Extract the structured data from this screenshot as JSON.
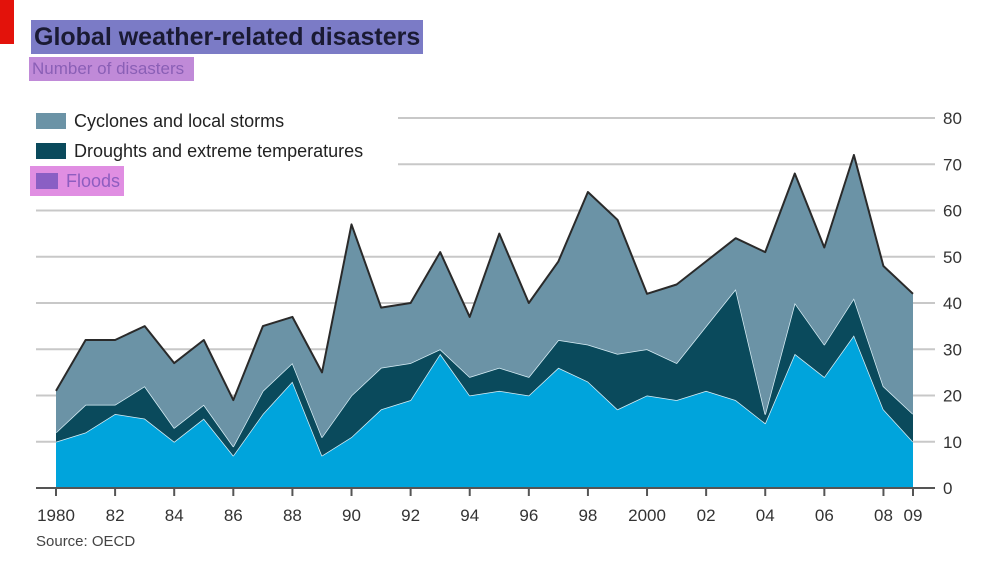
{
  "header": {
    "title": "Global weather-related disasters",
    "subtitle": "Number of disasters"
  },
  "source": "Source: OECD",
  "colors": {
    "accent": "#e3120b",
    "cyclones": "#6b93a6",
    "droughts": "#0a4a5c",
    "floods": "#00a4dc"
  },
  "chart_data": {
    "type": "area",
    "stacked": true,
    "title": "Global weather-related disasters",
    "subtitle": "Number of disasters",
    "x": [
      1980,
      1981,
      1982,
      1983,
      1984,
      1985,
      1986,
      1987,
      1988,
      1989,
      1990,
      1991,
      1992,
      1993,
      1994,
      1995,
      1996,
      1997,
      1998,
      1999,
      2000,
      2001,
      2002,
      2003,
      2004,
      2005,
      2006,
      2007,
      2008,
      2009
    ],
    "x_tick_values": [
      1980,
      1982,
      1984,
      1986,
      1988,
      1990,
      1992,
      1994,
      1996,
      1998,
      2000,
      2002,
      2004,
      2006,
      2008,
      2009
    ],
    "x_tick_labels": [
      "1980",
      "82",
      "84",
      "86",
      "88",
      "90",
      "92",
      "94",
      "96",
      "98",
      "2000",
      "02",
      "04",
      "06",
      "08",
      "09"
    ],
    "y_ticks": [
      0,
      10,
      20,
      30,
      40,
      50,
      60,
      70,
      80
    ],
    "ylim": [
      0,
      80
    ],
    "y_axis_side": "right",
    "grid": true,
    "legend_position": "top-left",
    "series": [
      {
        "name": "Floods",
        "color": "#00a4dc",
        "values": [
          10,
          12,
          16,
          15,
          10,
          15,
          7,
          16,
          23,
          7,
          11,
          17,
          19,
          29,
          20,
          21,
          20,
          26,
          23,
          17,
          20,
          19,
          21,
          19,
          14,
          29,
          24,
          33,
          17,
          10
        ]
      },
      {
        "name": "Droughts and extreme temperatures",
        "color": "#0a4a5c",
        "values": [
          2,
          6,
          2,
          7,
          3,
          3,
          2,
          5,
          4,
          4,
          9,
          9,
          8,
          1,
          4,
          5,
          4,
          6,
          8,
          12,
          10,
          8,
          14,
          24,
          2,
          11,
          7,
          8,
          5,
          6
        ]
      },
      {
        "name": "Cyclones and local storms",
        "color": "#6b93a6",
        "values": [
          9,
          14,
          14,
          13,
          14,
          14,
          10,
          14,
          10,
          14,
          37,
          13,
          13,
          21,
          13,
          29,
          16,
          17,
          33,
          29,
          12,
          17,
          14,
          11,
          35,
          28,
          21,
          31,
          26,
          26
        ]
      }
    ],
    "legend": [
      "Cyclones and local storms",
      "Droughts and extreme temperatures",
      "Floods"
    ]
  }
}
